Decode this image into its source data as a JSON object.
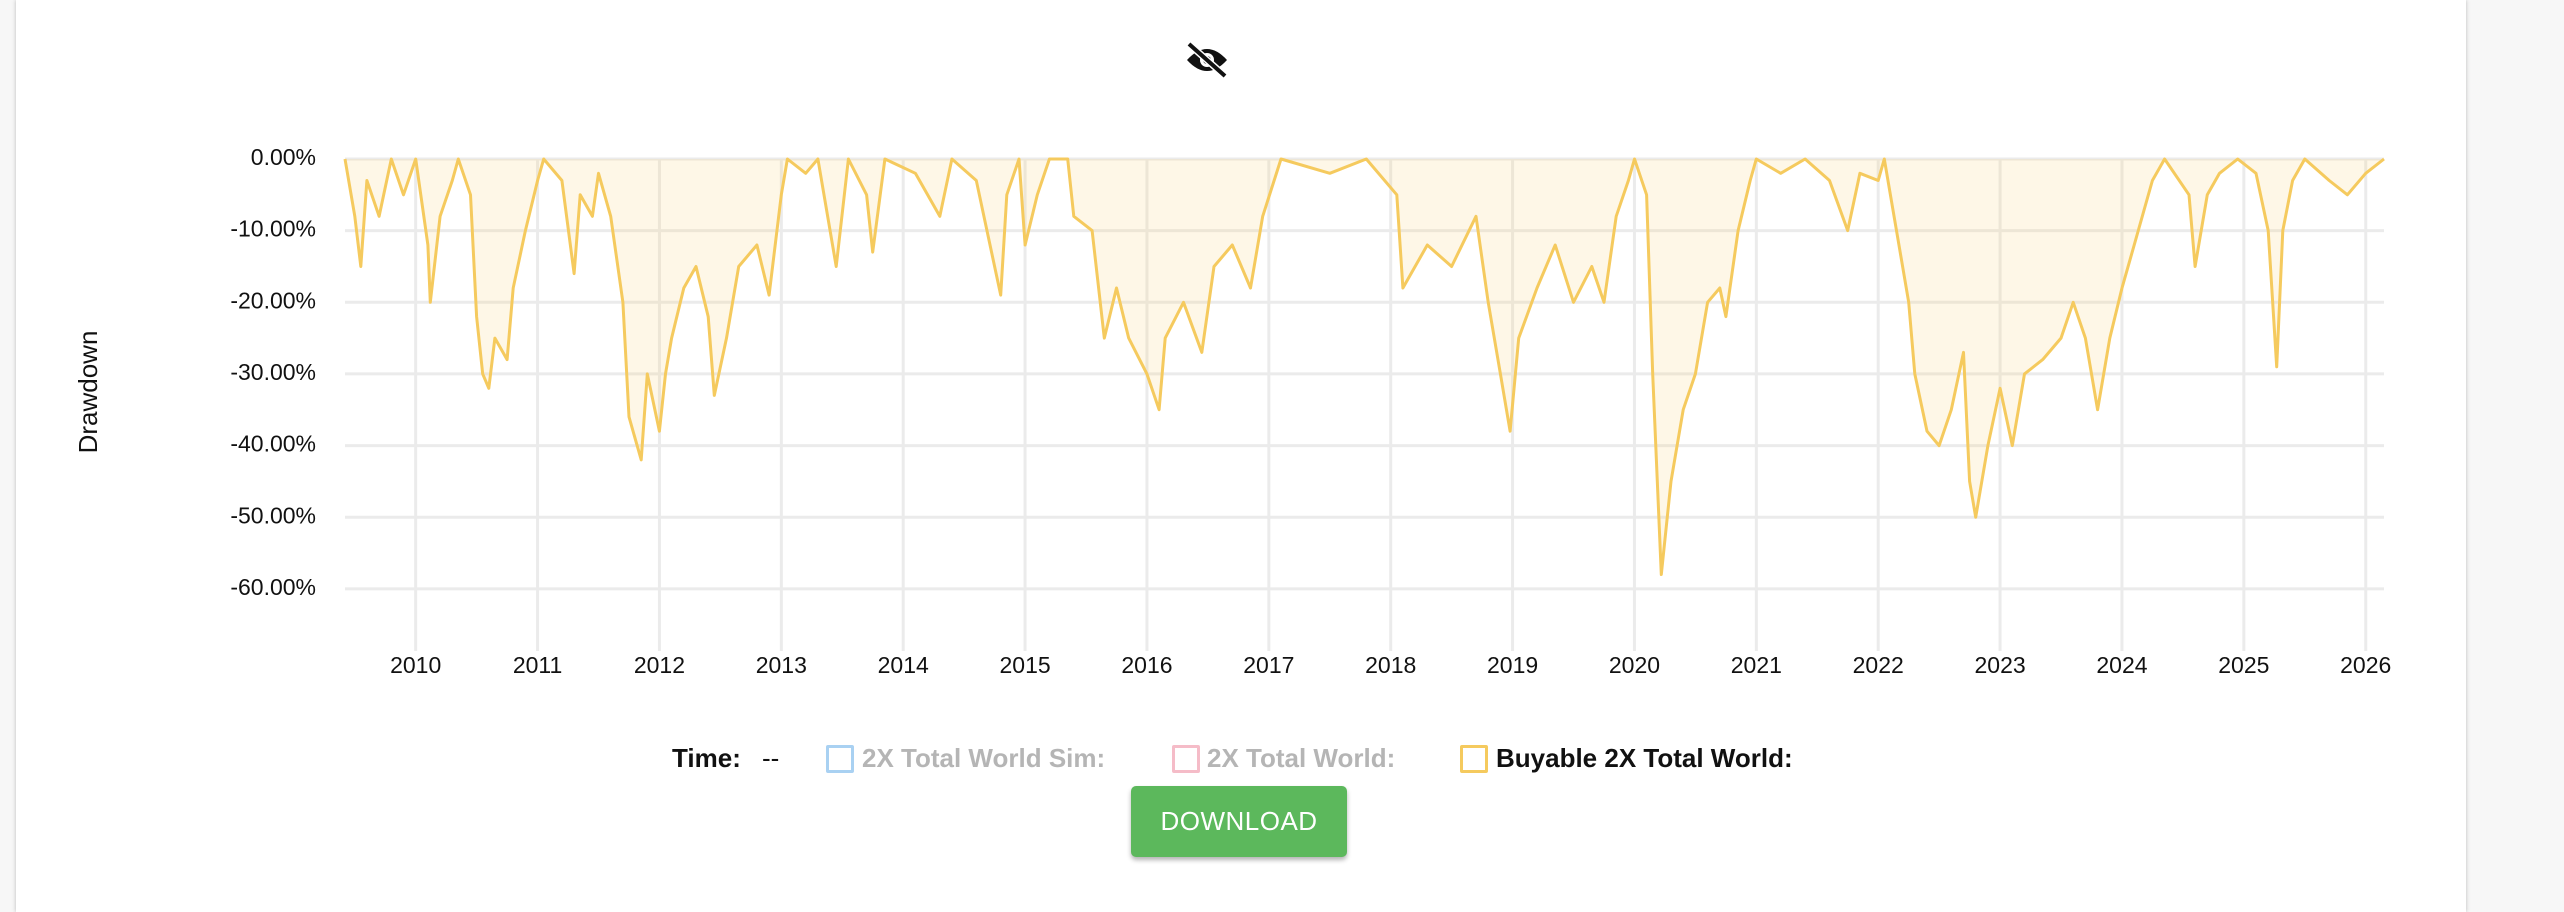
{
  "chart_data": {
    "type": "area",
    "ylabel": "Drawdown",
    "hover_label": "Time:",
    "hover_value": "--",
    "button": "DOWNLOAD",
    "grid": true,
    "xlim": [
      2009.42,
      2026.15
    ],
    "ylim": [
      -67,
      0
    ],
    "xticks": [
      2010,
      2011,
      2012,
      2013,
      2014,
      2015,
      2016,
      2017,
      2018,
      2019,
      2020,
      2021,
      2022,
      2023,
      2024,
      2025,
      2026
    ],
    "yticks": [
      {
        "value": 0,
        "label": "0.00%"
      },
      {
        "value": -10,
        "label": "-10.00%"
      },
      {
        "value": -20,
        "label": "-20.00%"
      },
      {
        "value": -30,
        "label": "-30.00%"
      },
      {
        "value": -40,
        "label": "-40.00%"
      },
      {
        "value": -50,
        "label": "-50.00%"
      },
      {
        "value": -60,
        "label": "-60.00%"
      }
    ],
    "x": [
      2009.42,
      2009.5,
      2009.55,
      2009.6,
      2009.7,
      2009.8,
      2009.9,
      2010.0,
      2010.1,
      2010.12,
      2010.2,
      2010.3,
      2010.35,
      2010.45,
      2010.5,
      2010.55,
      2010.6,
      2010.65,
      2010.75,
      2010.8,
      2010.9,
      2011.0,
      2011.05,
      2011.2,
      2011.3,
      2011.35,
      2011.45,
      2011.5,
      2011.6,
      2011.7,
      2011.75,
      2011.85,
      2011.9,
      2012.0,
      2012.05,
      2012.1,
      2012.2,
      2012.3,
      2012.4,
      2012.45,
      2012.55,
      2012.65,
      2012.8,
      2012.9,
      2013.0,
      2013.05,
      2013.2,
      2013.3,
      2013.45,
      2013.55,
      2013.7,
      2013.75,
      2013.85,
      2014.1,
      2014.3,
      2014.4,
      2014.6,
      2014.8,
      2014.85,
      2014.95,
      2015.0,
      2015.1,
      2015.2,
      2015.35,
      2015.4,
      2015.55,
      2015.65,
      2015.75,
      2015.85,
      2016.0,
      2016.1,
      2016.15,
      2016.3,
      2016.45,
      2016.55,
      2016.7,
      2016.85,
      2016.95,
      2017.1,
      2017.5,
      2017.8,
      2018.05,
      2018.1,
      2018.3,
      2018.5,
      2018.7,
      2018.8,
      2018.9,
      2018.98,
      2019.05,
      2019.2,
      2019.35,
      2019.5,
      2019.65,
      2019.75,
      2019.85,
      2019.95,
      2020.0,
      2020.1,
      2020.15,
      2020.22,
      2020.3,
      2020.4,
      2020.5,
      2020.6,
      2020.7,
      2020.75,
      2020.85,
      2020.95,
      2021.0,
      2021.2,
      2021.4,
      2021.6,
      2021.75,
      2021.85,
      2022.0,
      2022.05,
      2022.15,
      2022.25,
      2022.3,
      2022.4,
      2022.5,
      2022.6,
      2022.7,
      2022.75,
      2022.8,
      2022.9,
      2023.0,
      2023.1,
      2023.2,
      2023.35,
      2023.5,
      2023.6,
      2023.7,
      2023.8,
      2023.9,
      2024.0,
      2024.1,
      2024.25,
      2024.35,
      2024.55,
      2024.6,
      2024.7,
      2024.8,
      2024.95,
      2025.1,
      2025.2,
      2025.27,
      2025.32,
      2025.4,
      2025.5,
      2025.7,
      2025.85,
      2026.0,
      2026.15
    ],
    "series": [
      {
        "name": "2X Total World Sim:",
        "color": "#a9d1f2",
        "hidden": true
      },
      {
        "name": "2X Total World:",
        "color": "#f5bcc8",
        "hidden": true
      },
      {
        "name": "Buyable 2X Total World:",
        "color": "#f5ca5e",
        "hidden": false,
        "values": [
          0,
          -8,
          -15,
          -3,
          -8,
          0,
          -5,
          0,
          -12,
          -20,
          -8,
          -3,
          0,
          -5,
          -22,
          -30,
          -32,
          -25,
          -28,
          -18,
          -10,
          -3,
          0,
          -3,
          -16,
          -5,
          -8,
          -2,
          -8,
          -20,
          -36,
          -42,
          -30,
          -38,
          -30,
          -25,
          -18,
          -15,
          -22,
          -33,
          -25,
          -15,
          -12,
          -19,
          -5,
          0,
          -2,
          0,
          -15,
          0,
          -5,
          -13,
          0,
          -2,
          -8,
          0,
          -3,
          -19,
          -5,
          0,
          -12,
          -5,
          0,
          0,
          -8,
          -10,
          -25,
          -18,
          -25,
          -30,
          -35,
          -25,
          -20,
          -27,
          -15,
          -12,
          -18,
          -8,
          0,
          -2,
          0,
          -5,
          -18,
          -12,
          -15,
          -8,
          -20,
          -30,
          -38,
          -25,
          -18,
          -12,
          -20,
          -15,
          -20,
          -8,
          -3,
          0,
          -5,
          -30,
          -58,
          -45,
          -35,
          -30,
          -20,
          -18,
          -22,
          -10,
          -3,
          0,
          -2,
          0,
          -3,
          -10,
          -2,
          -3,
          0,
          -10,
          -20,
          -30,
          -38,
          -40,
          -35,
          -27,
          -45,
          -50,
          -40,
          -32,
          -40,
          -30,
          -28,
          -25,
          -20,
          -25,
          -35,
          -25,
          -18,
          -12,
          -3,
          0,
          -5,
          -15,
          -5,
          -2,
          0,
          -2,
          -10,
          -29,
          -10,
          -3,
          0,
          -3,
          -5,
          -2,
          0
        ]
      }
    ]
  }
}
